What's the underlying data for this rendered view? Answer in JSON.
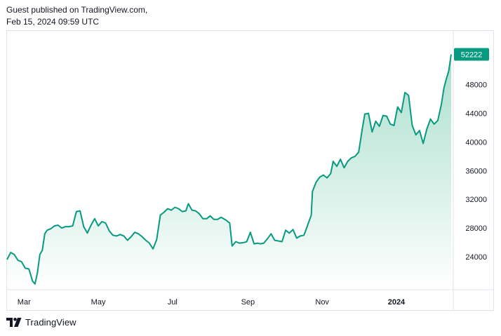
{
  "header": {
    "line1": "Guest published on TradingView.com,",
    "line2": "Feb 15, 2024 09:59 UTC"
  },
  "footer": {
    "brand": "TradingView",
    "logo_icon": "tradingview-logo-icon"
  },
  "colors": {
    "line": "#089981",
    "badge": "#089981",
    "badge_text": "#ffffff",
    "fill_top": "#a3dcc9",
    "grid": "#e0e3eb"
  },
  "chart_data": {
    "type": "area",
    "title": "",
    "xlabel": "",
    "ylabel": "",
    "ylim": [
      19500,
      55500
    ],
    "grid": false,
    "y_ticks": [
      24000,
      28000,
      32000,
      36000,
      40000,
      44000,
      48000
    ],
    "x_ticks": [
      {
        "label": "Mar",
        "date": "2023-03-01",
        "bold": false
      },
      {
        "label": "May",
        "date": "2023-05-01",
        "bold": false
      },
      {
        "label": "Jul",
        "date": "2023-07-01",
        "bold": false
      },
      {
        "label": "Sep",
        "date": "2023-09-01",
        "bold": false
      },
      {
        "label": "Nov",
        "date": "2023-11-01",
        "bold": false
      },
      {
        "label": "2024",
        "date": "2024-01-01",
        "bold": true
      }
    ],
    "last_value_label": "52222",
    "series": [
      {
        "x": [
          "2023-02-15",
          "2023-02-18",
          "2023-02-21",
          "2023-02-24",
          "2023-02-27",
          "2023-03-02",
          "2023-03-05",
          "2023-03-08",
          "2023-03-10",
          "2023-03-12",
          "2023-03-14",
          "2023-03-16",
          "2023-03-18",
          "2023-03-20",
          "2023-03-23",
          "2023-03-26",
          "2023-03-29",
          "2023-04-01",
          "2023-04-04",
          "2023-04-07",
          "2023-04-10",
          "2023-04-13",
          "2023-04-16",
          "2023-04-19",
          "2023-04-22",
          "2023-04-25",
          "2023-04-28",
          "2023-05-01",
          "2023-05-04",
          "2023-05-07",
          "2023-05-10",
          "2023-05-13",
          "2023-05-16",
          "2023-05-19",
          "2023-05-22",
          "2023-05-25",
          "2023-05-28",
          "2023-05-31",
          "2023-06-03",
          "2023-06-06",
          "2023-06-09",
          "2023-06-12",
          "2023-06-15",
          "2023-06-18",
          "2023-06-21",
          "2023-06-24",
          "2023-06-27",
          "2023-06-30",
          "2023-07-03",
          "2023-07-06",
          "2023-07-09",
          "2023-07-12",
          "2023-07-14",
          "2023-07-17",
          "2023-07-20",
          "2023-07-23",
          "2023-07-26",
          "2023-07-29",
          "2023-08-01",
          "2023-08-04",
          "2023-08-07",
          "2023-08-10",
          "2023-08-14",
          "2023-08-17",
          "2023-08-19",
          "2023-08-22",
          "2023-08-25",
          "2023-08-29",
          "2023-08-31",
          "2023-09-03",
          "2023-09-06",
          "2023-09-09",
          "2023-09-11",
          "2023-09-14",
          "2023-09-17",
          "2023-09-20",
          "2023-09-23",
          "2023-09-26",
          "2023-09-29",
          "2023-10-02",
          "2023-10-05",
          "2023-10-08",
          "2023-10-11",
          "2023-10-14",
          "2023-10-17",
          "2023-10-20",
          "2023-10-23",
          "2023-10-24",
          "2023-10-27",
          "2023-10-30",
          "2023-11-02",
          "2023-11-05",
          "2023-11-08",
          "2023-11-10",
          "2023-11-13",
          "2023-11-16",
          "2023-11-19",
          "2023-11-22",
          "2023-11-25",
          "2023-11-28",
          "2023-12-01",
          "2023-12-04",
          "2023-12-06",
          "2023-12-09",
          "2023-12-12",
          "2023-12-15",
          "2023-12-18",
          "2023-12-21",
          "2023-12-24",
          "2023-12-27",
          "2023-12-30",
          "2024-01-02",
          "2024-01-05",
          "2024-01-08",
          "2024-01-11",
          "2024-01-14",
          "2024-01-17",
          "2024-01-20",
          "2024-01-23",
          "2024-01-26",
          "2024-01-29",
          "2024-02-01",
          "2024-02-04",
          "2024-02-07",
          "2024-02-09",
          "2024-02-11",
          "2024-02-13",
          "2024-02-15"
        ],
        "y": [
          23600,
          24600,
          24300,
          23500,
          23300,
          22400,
          22300,
          20600,
          20200,
          21800,
          24300,
          24900,
          27200,
          27700,
          27900,
          28300,
          28400,
          28000,
          28200,
          28200,
          28300,
          30300,
          30400,
          28200,
          27300,
          28400,
          29300,
          28300,
          28900,
          28700,
          27600,
          27000,
          26900,
          27100,
          26900,
          26300,
          26800,
          27400,
          27200,
          26800,
          26300,
          25900,
          25100,
          26400,
          29800,
          30200,
          30700,
          30500,
          30900,
          30700,
          30300,
          30400,
          31400,
          30500,
          30400,
          30000,
          29300,
          29300,
          29700,
          29200,
          29200,
          29500,
          29100,
          28700,
          25500,
          26100,
          25900,
          26000,
          26100,
          27400,
          25800,
          25900,
          25800,
          25900,
          26500,
          27200,
          26300,
          26200,
          26100,
          27700,
          27300,
          27800,
          26600,
          26900,
          27000,
          28400,
          29800,
          33100,
          34400,
          35100,
          35400,
          35000,
          35600,
          37300,
          36600,
          37600,
          36400,
          37300,
          37800,
          38000,
          38600,
          41900,
          43900,
          44000,
          41400,
          42900,
          42200,
          43700,
          43600,
          42500,
          42300,
          44900,
          44100,
          46900,
          46500,
          42300,
          41000,
          41600,
          39800,
          41800,
          43200,
          42500,
          43000,
          45300,
          47500,
          48800,
          49900,
          52222
        ]
      }
    ]
  }
}
